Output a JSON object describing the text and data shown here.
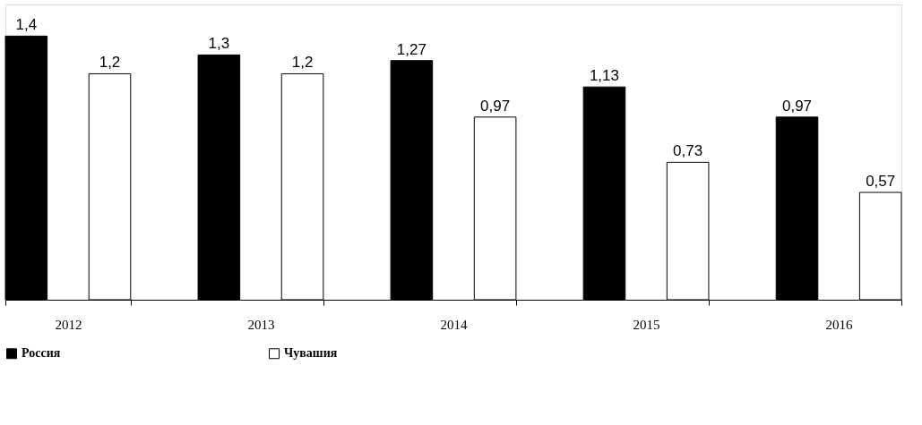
{
  "chart_data": {
    "type": "bar",
    "categories": [
      "2012",
      "2013",
      "2014",
      "2015",
      "2016"
    ],
    "series": [
      {
        "name": "Россия",
        "color": "#000000",
        "values": [
          1.4,
          1.3,
          1.27,
          1.13,
          0.97
        ],
        "value_labels": [
          "1,4",
          "1,3",
          "1,27",
          "1,13",
          "0,97"
        ]
      },
      {
        "name": "Чувашия",
        "color": "#ffffff",
        "values": [
          1.2,
          1.2,
          0.97,
          0.73,
          0.57
        ],
        "value_labels": [
          "1,2",
          "1,2",
          "0,97",
          "0,73",
          "0,57"
        ]
      }
    ],
    "legend": "bottom",
    "grid": false
  }
}
